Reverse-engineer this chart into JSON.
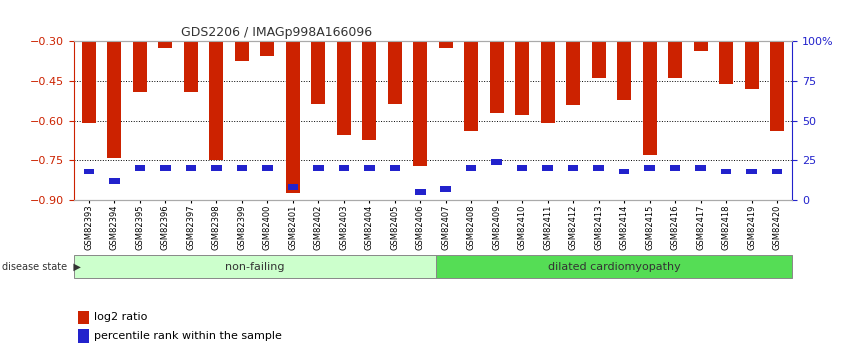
{
  "title": "GDS2206 / IMAGp998A166096",
  "samples": [
    "GSM82393",
    "GSM82394",
    "GSM82395",
    "GSM82396",
    "GSM82397",
    "GSM82398",
    "GSM82399",
    "GSM82400",
    "GSM82401",
    "GSM82402",
    "GSM82403",
    "GSM82404",
    "GSM82405",
    "GSM82406",
    "GSM82407",
    "GSM82408",
    "GSM82409",
    "GSM82410",
    "GSM82411",
    "GSM82412",
    "GSM82413",
    "GSM82414",
    "GSM82415",
    "GSM82416",
    "GSM82417",
    "GSM82418",
    "GSM82419",
    "GSM82420"
  ],
  "log2_ratio": [
    -0.61,
    -0.74,
    -0.49,
    -0.325,
    -0.49,
    -0.75,
    -0.375,
    -0.355,
    -0.875,
    -0.535,
    -0.655,
    -0.672,
    -0.535,
    -0.77,
    -0.325,
    -0.64,
    -0.57,
    -0.58,
    -0.61,
    -0.54,
    -0.44,
    -0.52,
    -0.73,
    -0.44,
    -0.335,
    -0.46,
    -0.48,
    -0.64
  ],
  "percentile": [
    18,
    12,
    20,
    20,
    20,
    20,
    20,
    20,
    8,
    20,
    20,
    20,
    20,
    5,
    7,
    20,
    24,
    20,
    20,
    20,
    20,
    18,
    20,
    20,
    20,
    18,
    18,
    18
  ],
  "non_failing_count": 14,
  "ylim_left": [
    -0.9,
    -0.3
  ],
  "ylim_right": [
    0,
    100
  ],
  "yticks_left": [
    -0.9,
    -0.75,
    -0.6,
    -0.45,
    -0.3
  ],
  "yticks_right": [
    0,
    25,
    50,
    75,
    100
  ],
  "ytick_labels_right": [
    "0",
    "25",
    "50",
    "75",
    "100%"
  ],
  "bar_color": "#CC2200",
  "blue_color": "#2222CC",
  "nonfailing_color": "#CCFFCC",
  "dcm_color": "#55DD55",
  "title_color": "#333333",
  "left_axis_color": "#CC2200",
  "right_axis_color": "#2222CC",
  "grid_color": "#000000",
  "bar_width": 0.55
}
